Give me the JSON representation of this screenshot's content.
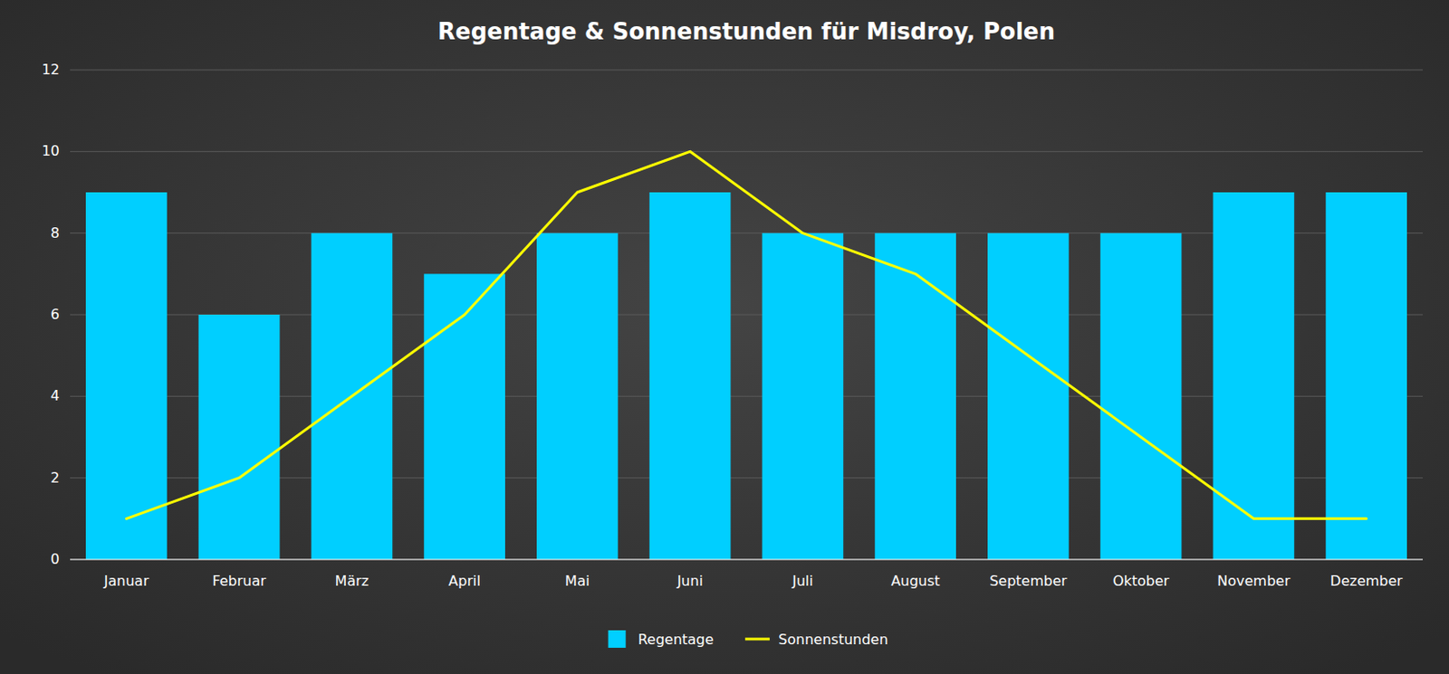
{
  "chart_data": {
    "type": "bar",
    "title": "Regentage & Sonnenstunden für Misdroy, Polen",
    "categories": [
      "Januar",
      "Februar",
      "März",
      "April",
      "Mai",
      "Juni",
      "Juli",
      "August",
      "September",
      "Oktober",
      "November",
      "Dezember"
    ],
    "series": [
      {
        "name": "Regentage",
        "type": "bar",
        "color": "#00CFFF",
        "values": [
          9,
          6,
          8,
          7,
          8,
          9,
          8,
          8,
          8,
          8,
          9,
          9
        ]
      },
      {
        "name": "Sonnenstunden",
        "type": "line",
        "color": "#FFFF00",
        "values": [
          1,
          2,
          4,
          6,
          9,
          10,
          8,
          7,
          5,
          3,
          1,
          1
        ]
      }
    ],
    "ylim": [
      0,
      12
    ],
    "yticks": [
      0,
      2,
      4,
      6,
      8,
      10,
      12
    ],
    "grid": true,
    "legend": "bottom"
  }
}
